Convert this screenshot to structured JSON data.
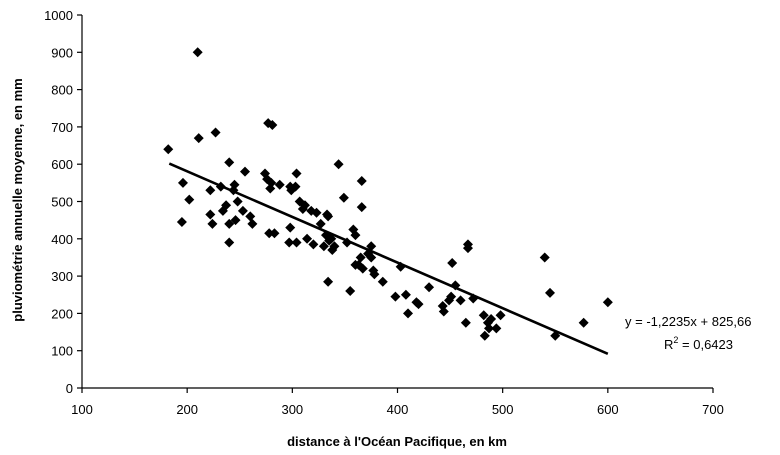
{
  "chart_data": {
    "type": "scatter",
    "xlabel": "distance à l'Océan Pacifique, en km",
    "ylabel": "pluviométrie annuelle moyenne, en mm",
    "xlim": [
      100,
      700
    ],
    "ylim": [
      0,
      1000
    ],
    "x_ticks": [
      100,
      200,
      300,
      400,
      500,
      600,
      700
    ],
    "y_ticks": [
      0,
      100,
      200,
      300,
      400,
      500,
      600,
      700,
      800,
      900,
      1000
    ],
    "grid": false,
    "marker_color": "#000000",
    "points": [
      [
        182,
        640
      ],
      [
        196,
        550
      ],
      [
        202,
        505
      ],
      [
        195,
        445
      ],
      [
        210,
        900
      ],
      [
        211,
        670
      ],
      [
        222,
        530
      ],
      [
        222,
        465
      ],
      [
        224,
        440
      ],
      [
        227,
        685
      ],
      [
        232,
        540
      ],
      [
        234,
        475
      ],
      [
        237,
        490
      ],
      [
        240,
        605
      ],
      [
        240,
        440
      ],
      [
        240,
        390
      ],
      [
        244,
        530
      ],
      [
        245,
        545
      ],
      [
        246,
        450
      ],
      [
        248,
        500
      ],
      [
        253,
        475
      ],
      [
        255,
        580
      ],
      [
        260,
        460
      ],
      [
        262,
        440
      ],
      [
        274,
        575
      ],
      [
        276,
        560
      ],
      [
        277,
        710
      ],
      [
        281,
        705
      ],
      [
        279,
        535
      ],
      [
        280,
        550
      ],
      [
        278,
        415
      ],
      [
        283,
        415
      ],
      [
        288,
        545
      ],
      [
        298,
        540
      ],
      [
        299,
        530
      ],
      [
        298,
        430
      ],
      [
        297,
        390
      ],
      [
        304,
        575
      ],
      [
        303,
        540
      ],
      [
        304,
        390
      ],
      [
        307,
        500
      ],
      [
        310,
        480
      ],
      [
        312,
        490
      ],
      [
        314,
        400
      ],
      [
        318,
        475
      ],
      [
        320,
        385
      ],
      [
        323,
        470
      ],
      [
        327,
        440
      ],
      [
        330,
        380
      ],
      [
        332,
        410
      ],
      [
        333,
        465
      ],
      [
        334,
        460
      ],
      [
        335,
        395
      ],
      [
        334,
        285
      ],
      [
        337,
        400
      ],
      [
        338,
        370
      ],
      [
        340,
        380
      ],
      [
        344,
        600
      ],
      [
        349,
        510
      ],
      [
        352,
        390
      ],
      [
        355,
        260
      ],
      [
        358,
        425
      ],
      [
        360,
        410
      ],
      [
        360,
        330
      ],
      [
        363,
        330
      ],
      [
        365,
        350
      ],
      [
        366,
        485
      ],
      [
        366,
        555
      ],
      [
        367,
        320
      ],
      [
        372,
        360
      ],
      [
        375,
        350
      ],
      [
        375,
        380
      ],
      [
        377,
        315
      ],
      [
        378,
        305
      ],
      [
        386,
        285
      ],
      [
        398,
        245
      ],
      [
        403,
        325
      ],
      [
        408,
        250
      ],
      [
        410,
        200
      ],
      [
        418,
        230
      ],
      [
        420,
        225
      ],
      [
        430,
        270
      ],
      [
        443,
        220
      ],
      [
        444,
        205
      ],
      [
        449,
        235
      ],
      [
        451,
        245
      ],
      [
        452,
        335
      ],
      [
        455,
        275
      ],
      [
        460,
        235
      ],
      [
        465,
        175
      ],
      [
        467,
        385
      ],
      [
        467,
        375
      ],
      [
        472,
        240
      ],
      [
        482,
        195
      ],
      [
        483,
        140
      ],
      [
        486,
        175
      ],
      [
        487,
        160
      ],
      [
        489,
        185
      ],
      [
        494,
        160
      ],
      [
        498,
        195
      ],
      [
        540,
        350
      ],
      [
        545,
        255
      ],
      [
        550,
        140
      ],
      [
        577,
        175
      ],
      [
        600,
        230
      ]
    ],
    "trendline": {
      "slope": -1.2235,
      "intercept": 825.66,
      "x_range": [
        183,
        600
      ],
      "equation_label": "y = -1,2235x + 825,66",
      "r2_prefix": "R",
      "r2_superscript": "2",
      "r2_value": " = 0,6423"
    }
  }
}
